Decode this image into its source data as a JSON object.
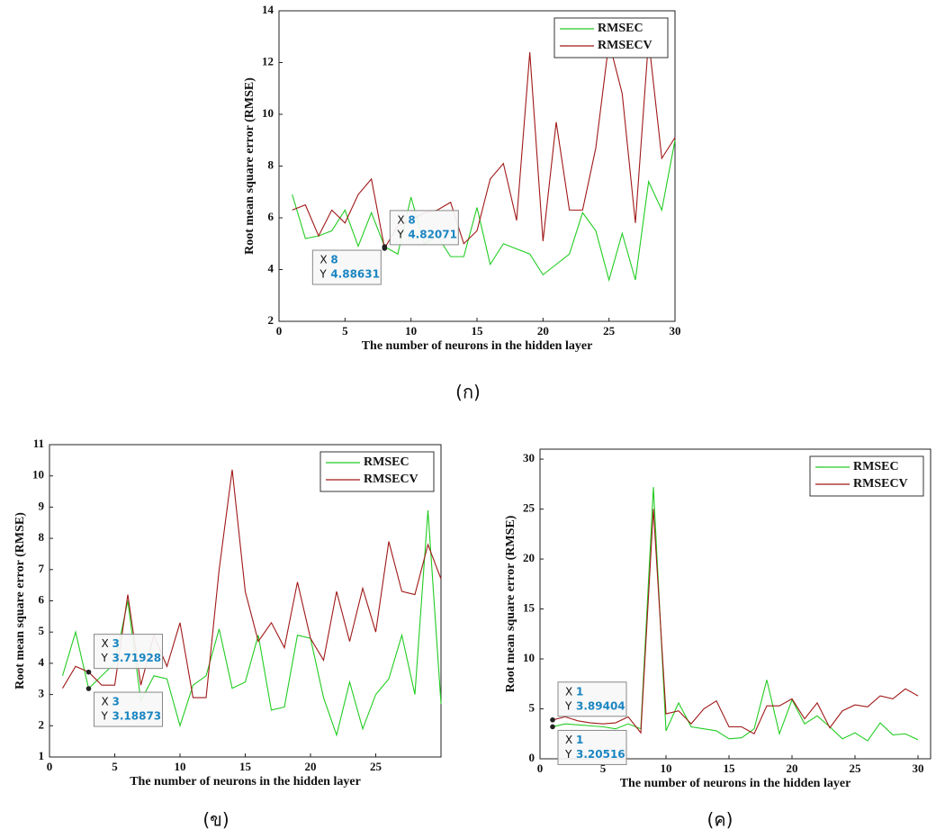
{
  "chart_data": [
    {
      "type": "line",
      "caption": "(ก)",
      "xlabel": "The number of neurons in the hidden layer",
      "ylabel": "Root mean square error (RMSE)",
      "x": [
        1,
        2,
        3,
        4,
        5,
        6,
        7,
        8,
        9,
        10,
        11,
        12,
        13,
        14,
        15,
        16,
        17,
        18,
        19,
        20,
        21,
        22,
        23,
        24,
        25,
        26,
        27,
        28,
        29,
        30
      ],
      "xlim": [
        0,
        30
      ],
      "xticks": [
        0,
        5,
        10,
        15,
        20,
        25,
        30
      ],
      "ylim": [
        2,
        14
      ],
      "yticks": [
        2,
        4,
        6,
        8,
        10,
        12,
        14
      ],
      "legend": "upper right",
      "series": [
        {
          "name": "RMSEC",
          "color": "#22cc22",
          "values": [
            6.9,
            5.2,
            5.3,
            5.5,
            6.3,
            4.9,
            6.2,
            4.88631,
            4.6,
            6.8,
            5.0,
            5.3,
            4.5,
            4.5,
            6.4,
            4.2,
            5.0,
            4.8,
            4.6,
            3.8,
            4.2,
            4.6,
            6.2,
            5.5,
            3.6,
            5.4,
            3.6,
            7.4,
            6.3,
            9.0
          ]
        },
        {
          "name": "RMSECV",
          "color": "#a01818",
          "values": [
            6.3,
            6.5,
            5.3,
            6.3,
            5.8,
            6.9,
            7.5,
            4.82071,
            5.7,
            5.9,
            6.2,
            6.3,
            6.6,
            5.0,
            5.5,
            7.5,
            8.1,
            5.9,
            12.4,
            5.1,
            9.7,
            6.3,
            6.3,
            8.7,
            12.8,
            10.8,
            5.8,
            12.9,
            8.3,
            9.1
          ]
        }
      ],
      "annotations": [
        {
          "x_label": "X",
          "x": 8,
          "y_label": "Y",
          "y": 4.82071
        },
        {
          "x_label": "X",
          "x": 8,
          "y_label": "Y",
          "y": 4.88631
        }
      ]
    },
    {
      "type": "line",
      "caption": "(ข)",
      "xlabel": "The number of neurons in the hidden layer",
      "ylabel": "Root mean square error (RMSE)",
      "x": [
        1,
        2,
        3,
        4,
        5,
        6,
        7,
        8,
        9,
        10,
        11,
        12,
        13,
        14,
        15,
        16,
        17,
        18,
        19,
        20,
        21,
        22,
        23,
        24,
        25,
        26,
        27,
        28,
        29,
        30
      ],
      "xlim": [
        0,
        30
      ],
      "xticks": [
        0,
        5,
        10,
        15,
        20,
        25
      ],
      "ylim": [
        1,
        11
      ],
      "yticks": [
        1,
        2,
        3,
        4,
        5,
        6,
        7,
        8,
        9,
        10,
        11
      ],
      "legend": "upper right",
      "series": [
        {
          "name": "RMSEC",
          "color": "#22cc22",
          "values": [
            3.6,
            5.0,
            3.18873,
            3.6,
            4.0,
            6.0,
            2.8,
            3.6,
            3.5,
            2.0,
            3.3,
            3.6,
            5.1,
            3.2,
            3.4,
            4.9,
            2.5,
            2.6,
            4.9,
            4.8,
            2.9,
            1.7,
            3.4,
            1.9,
            3.0,
            3.5,
            4.9,
            3.0,
            8.9,
            2.7
          ]
        },
        {
          "name": "RMSECV",
          "color": "#a01818",
          "values": [
            3.2,
            3.9,
            3.71928,
            3.3,
            3.3,
            6.2,
            3.3,
            4.9,
            3.9,
            5.3,
            2.9,
            2.9,
            7.0,
            10.2,
            6.3,
            4.7,
            5.3,
            4.5,
            6.6,
            4.8,
            4.1,
            6.3,
            4.7,
            6.4,
            5.0,
            7.9,
            6.3,
            6.2,
            7.8,
            6.7
          ]
        }
      ],
      "annotations": [
        {
          "x_label": "X",
          "x": 3,
          "y_label": "Y",
          "y": 3.71928
        },
        {
          "x_label": "X",
          "x": 3,
          "y_label": "Y",
          "y": 3.18873
        }
      ]
    },
    {
      "type": "line",
      "caption": "(ค)",
      "xlabel": "The number of neurons in the hidden layer",
      "ylabel": "Root mean square error (RMSE)",
      "x": [
        1,
        2,
        3,
        4,
        5,
        6,
        7,
        8,
        9,
        10,
        11,
        12,
        13,
        14,
        15,
        16,
        17,
        18,
        19,
        20,
        21,
        22,
        23,
        24,
        25,
        26,
        27,
        28,
        29,
        30
      ],
      "xlim": [
        0,
        31
      ],
      "xticks": [
        0,
        5,
        10,
        15,
        20,
        25,
        30
      ],
      "ylim": [
        0,
        31
      ],
      "yticks": [
        0,
        5,
        10,
        15,
        20,
        25,
        30
      ],
      "legend": "upper right",
      "series": [
        {
          "name": "RMSEC",
          "color": "#22cc22",
          "values": [
            3.20516,
            3.5,
            3.4,
            3.3,
            3.2,
            3.0,
            3.5,
            3.0,
            27.2,
            2.8,
            5.6,
            3.2,
            3.0,
            2.8,
            2.0,
            2.1,
            3.0,
            7.9,
            2.5,
            5.9,
            3.5,
            4.3,
            3.2,
            2.0,
            2.6,
            1.8,
            3.6,
            2.4,
            2.5,
            1.9
          ]
        },
        {
          "name": "RMSECV",
          "color": "#a01818",
          "values": [
            3.89404,
            4.2,
            3.8,
            3.6,
            3.5,
            3.6,
            4.2,
            2.6,
            25.0,
            4.5,
            4.8,
            3.5,
            5.0,
            5.8,
            3.2,
            3.2,
            2.5,
            5.3,
            5.3,
            6.0,
            4.0,
            5.6,
            3.1,
            4.8,
            5.4,
            5.2,
            6.3,
            6.0,
            7.0,
            6.3
          ]
        }
      ],
      "annotations": [
        {
          "x_label": "X",
          "x": 1,
          "y_label": "Y",
          "y": 3.89404
        },
        {
          "x_label": "X",
          "x": 1,
          "y_label": "Y",
          "y": 3.20516
        }
      ]
    }
  ]
}
